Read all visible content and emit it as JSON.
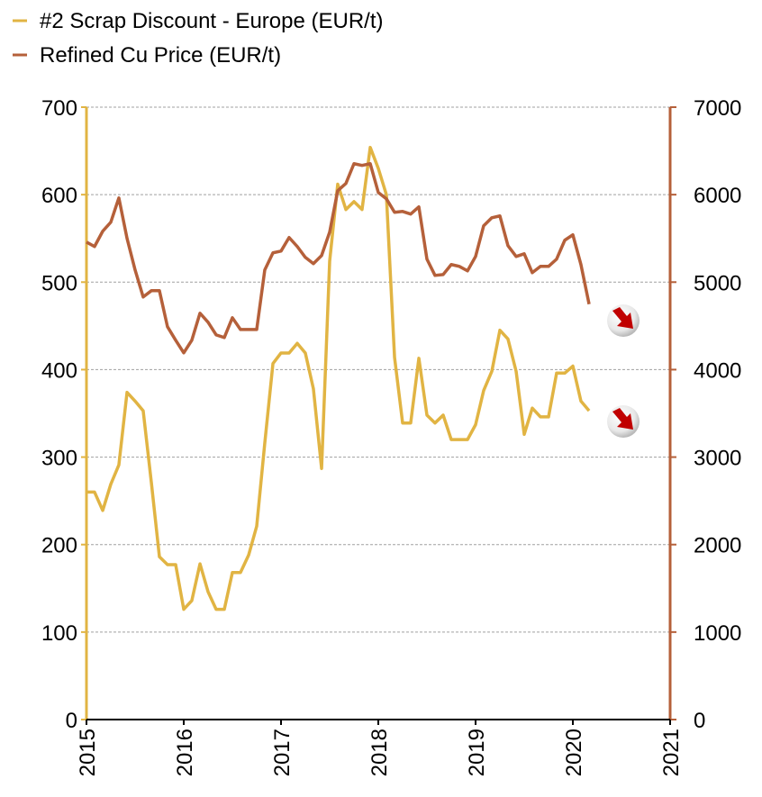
{
  "chart_data": {
    "type": "line",
    "x": [
      2015,
      2015.083,
      2015.167,
      2015.25,
      2015.333,
      2015.417,
      2015.5,
      2015.583,
      2015.667,
      2015.75,
      2015.833,
      2015.917,
      2016,
      2016.083,
      2016.167,
      2016.25,
      2016.333,
      2016.417,
      2016.5,
      2016.583,
      2016.667,
      2016.75,
      2016.833,
      2016.917,
      2017,
      2017.083,
      2017.167,
      2017.25,
      2017.333,
      2017.417,
      2017.5,
      2017.583,
      2017.667,
      2017.75,
      2017.833,
      2017.917,
      2018,
      2018.083,
      2018.167,
      2018.25,
      2018.333,
      2018.417,
      2018.5,
      2018.583,
      2018.667,
      2018.75,
      2018.833,
      2018.917,
      2019,
      2019.083,
      2019.167,
      2019.25,
      2019.333,
      2019.417,
      2019.5,
      2019.583,
      2019.667,
      2019.75,
      2019.833,
      2019.917,
      2020,
      2020.083,
      2020.167
    ],
    "series": [
      {
        "name": "#2 Scrap Discount - Europe (EUR/t)",
        "color": "#e1b443",
        "axis": "y",
        "values": [
          260,
          260,
          239,
          269,
          291,
          374,
          364,
          353,
          271,
          186,
          177,
          177,
          126,
          136,
          178,
          146,
          126,
          126,
          168,
          168,
          188,
          221,
          316,
          407,
          419,
          419,
          430,
          419,
          378,
          287,
          524,
          612,
          583,
          592,
          583,
          654,
          630,
          600,
          414,
          339,
          339,
          413,
          348,
          339,
          348,
          320,
          320,
          320,
          337,
          376,
          398,
          445,
          435,
          398,
          326,
          356,
          346,
          346,
          396,
          396,
          404,
          364,
          353
        ]
      },
      {
        "name": "Refined Cu Price (EUR/t)",
        "color": "#b5603a",
        "axis": "y2",
        "values": [
          5458,
          5407,
          5582,
          5685,
          5963,
          5500,
          5139,
          4830,
          4902,
          4902,
          4490,
          4336,
          4192,
          4336,
          4645,
          4542,
          4397,
          4367,
          4593,
          4459,
          4459,
          4459,
          5139,
          5335,
          5355,
          5510,
          5407,
          5283,
          5211,
          5304,
          5572,
          6045,
          6128,
          6354,
          6334,
          6354,
          6025,
          5953,
          5798,
          5808,
          5778,
          5860,
          5263,
          5077,
          5087,
          5201,
          5180,
          5129,
          5293,
          5644,
          5736,
          5757,
          5417,
          5293,
          5324,
          5108,
          5180,
          5180,
          5263,
          5479,
          5541,
          5201,
          4748
        ]
      }
    ],
    "xlim": [
      2015,
      2021
    ],
    "xticks": [
      2015,
      2016,
      2017,
      2018,
      2019,
      2020,
      2021
    ],
    "ylim": [
      0,
      700
    ],
    "yticks": [
      0,
      100,
      200,
      300,
      400,
      500,
      600,
      700
    ],
    "y2lim": [
      0,
      7000
    ],
    "y2ticks": [
      0,
      1000,
      2000,
      3000,
      4000,
      5000,
      6000,
      7000
    ],
    "grid": true,
    "legend": "top-left"
  }
}
